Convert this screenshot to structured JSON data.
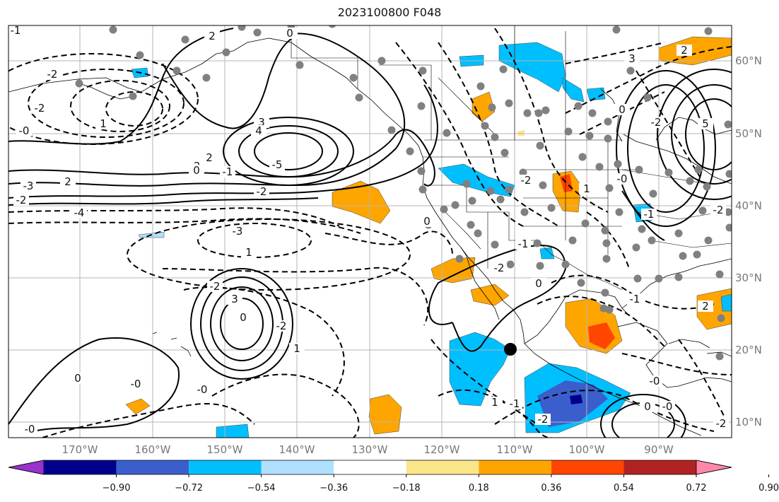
{
  "title": "2023100800 F048",
  "lon_labels": [
    "170°W",
    "160°W",
    "150°W",
    "140°W",
    "130°W",
    "120°W",
    "110°W",
    "100°W",
    "90°W"
  ],
  "lat_labels": [
    "60°N",
    "50°N",
    "40°N",
    "30°N",
    "20°N",
    "10°N"
  ],
  "colorbar": {
    "tick_labels": [
      "−0.90",
      "−0.72",
      "−0.54",
      "−0.36",
      "−0.18",
      "0.18",
      "0.36",
      "0.54",
      "0.72",
      "0.90"
    ],
    "colors": [
      "#9932cc",
      "#00008b",
      "#3a5fcd",
      "#00bfff",
      "#b0e0ff",
      "#ffffff",
      "#fbe58a",
      "#ffa500",
      "#ff4500",
      "#b22222",
      "#ff88aa"
    ]
  },
  "contour_labels": [
    {
      "text": "-1"
    },
    {
      "text": "2"
    },
    {
      "text": "0"
    },
    {
      "text": "-2"
    },
    {
      "text": "-2"
    },
    {
      "text": "-0"
    },
    {
      "text": "1"
    },
    {
      "text": "3"
    },
    {
      "text": "4"
    },
    {
      "text": "-5"
    },
    {
      "text": "2"
    },
    {
      "text": "-2"
    },
    {
      "text": "0"
    },
    {
      "text": "-1"
    },
    {
      "text": "-3"
    },
    {
      "text": "2"
    },
    {
      "text": "-2"
    },
    {
      "text": "-2"
    },
    {
      "text": "-4"
    },
    {
      "text": "-3"
    },
    {
      "text": "1"
    },
    {
      "text": "-2"
    },
    {
      "text": "3"
    },
    {
      "text": "0"
    },
    {
      "text": "-2"
    },
    {
      "text": "1"
    },
    {
      "text": "0"
    },
    {
      "text": "-0"
    },
    {
      "text": "-0"
    },
    {
      "text": "-0"
    },
    {
      "text": "0"
    },
    {
      "text": "-2"
    },
    {
      "text": "1"
    },
    {
      "text": "-1"
    },
    {
      "text": "-2"
    },
    {
      "text": "-1"
    },
    {
      "text": "2"
    },
    {
      "text": "-2"
    },
    {
      "text": "3"
    },
    {
      "text": "2"
    },
    {
      "text": "0"
    },
    {
      "text": "5"
    },
    {
      "text": "-2"
    },
    {
      "text": "-0"
    },
    {
      "text": "-1"
    },
    {
      "text": "0"
    },
    {
      "text": "-1"
    },
    {
      "text": "1"
    },
    {
      "text": "0"
    },
    {
      "text": "-0"
    },
    {
      "text": "-2"
    },
    {
      "text": "-0"
    },
    {
      "text": "-2"
    }
  ]
}
